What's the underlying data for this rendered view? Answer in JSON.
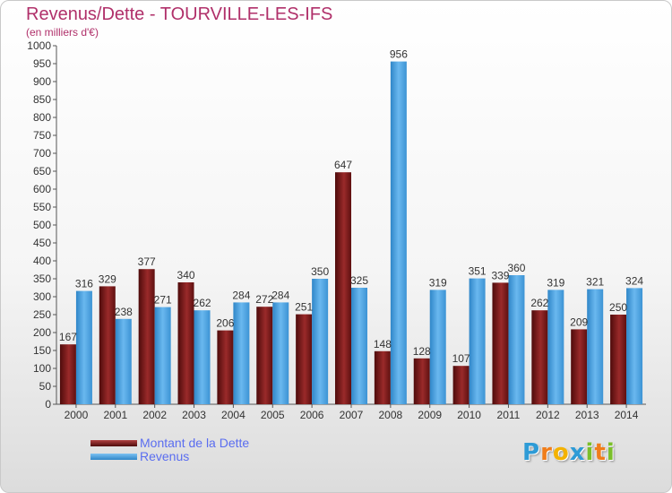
{
  "header": {
    "title": "Revenus/Dette - TOURVILLE-LES-IFS",
    "subtitle": "(en milliers d'€)"
  },
  "legend": {
    "items": [
      {
        "label": "Montant de la Dette",
        "color": "#7a1a1a"
      },
      {
        "label": "Revenus",
        "color": "#4aa3e0"
      }
    ]
  },
  "logo": {
    "text": "Proxiti",
    "letters": [
      {
        "ch": "P",
        "color": "#2e9bd6"
      },
      {
        "ch": "r",
        "color": "#f07d1a"
      },
      {
        "ch": "o",
        "color": "#f4b200"
      },
      {
        "ch": "x",
        "color": "#2e9bd6"
      },
      {
        "ch": "i",
        "color": "#7bbf2a"
      },
      {
        "ch": "t",
        "color": "#f07d1a"
      },
      {
        "ch": "i",
        "color": "#7bbf2a"
      }
    ]
  },
  "chart_data": {
    "type": "bar",
    "title": "Revenus/Dette - TOURVILLE-LES-IFS",
    "subtitle": "(en milliers d'€)",
    "categories": [
      "2000",
      "2001",
      "2002",
      "2003",
      "2004",
      "2005",
      "2006",
      "2007",
      "2008",
      "2009",
      "2010",
      "2011",
      "2012",
      "2013",
      "2014"
    ],
    "series": [
      {
        "name": "Montant de la Dette",
        "color": "#7a1a1a",
        "values": [
          167,
          329,
          377,
          340,
          206,
          272,
          251,
          647,
          148,
          128,
          107,
          339,
          262,
          209,
          250
        ]
      },
      {
        "name": "Revenus",
        "color": "#4aa3e0",
        "values": [
          316,
          238,
          271,
          262,
          284,
          284,
          350,
          325,
          956,
          319,
          351,
          360,
          319,
          321,
          324
        ]
      }
    ],
    "ylim": [
      0,
      1000
    ],
    "ytick_step": 50,
    "grid": false,
    "legend_position": "bottom-left"
  }
}
